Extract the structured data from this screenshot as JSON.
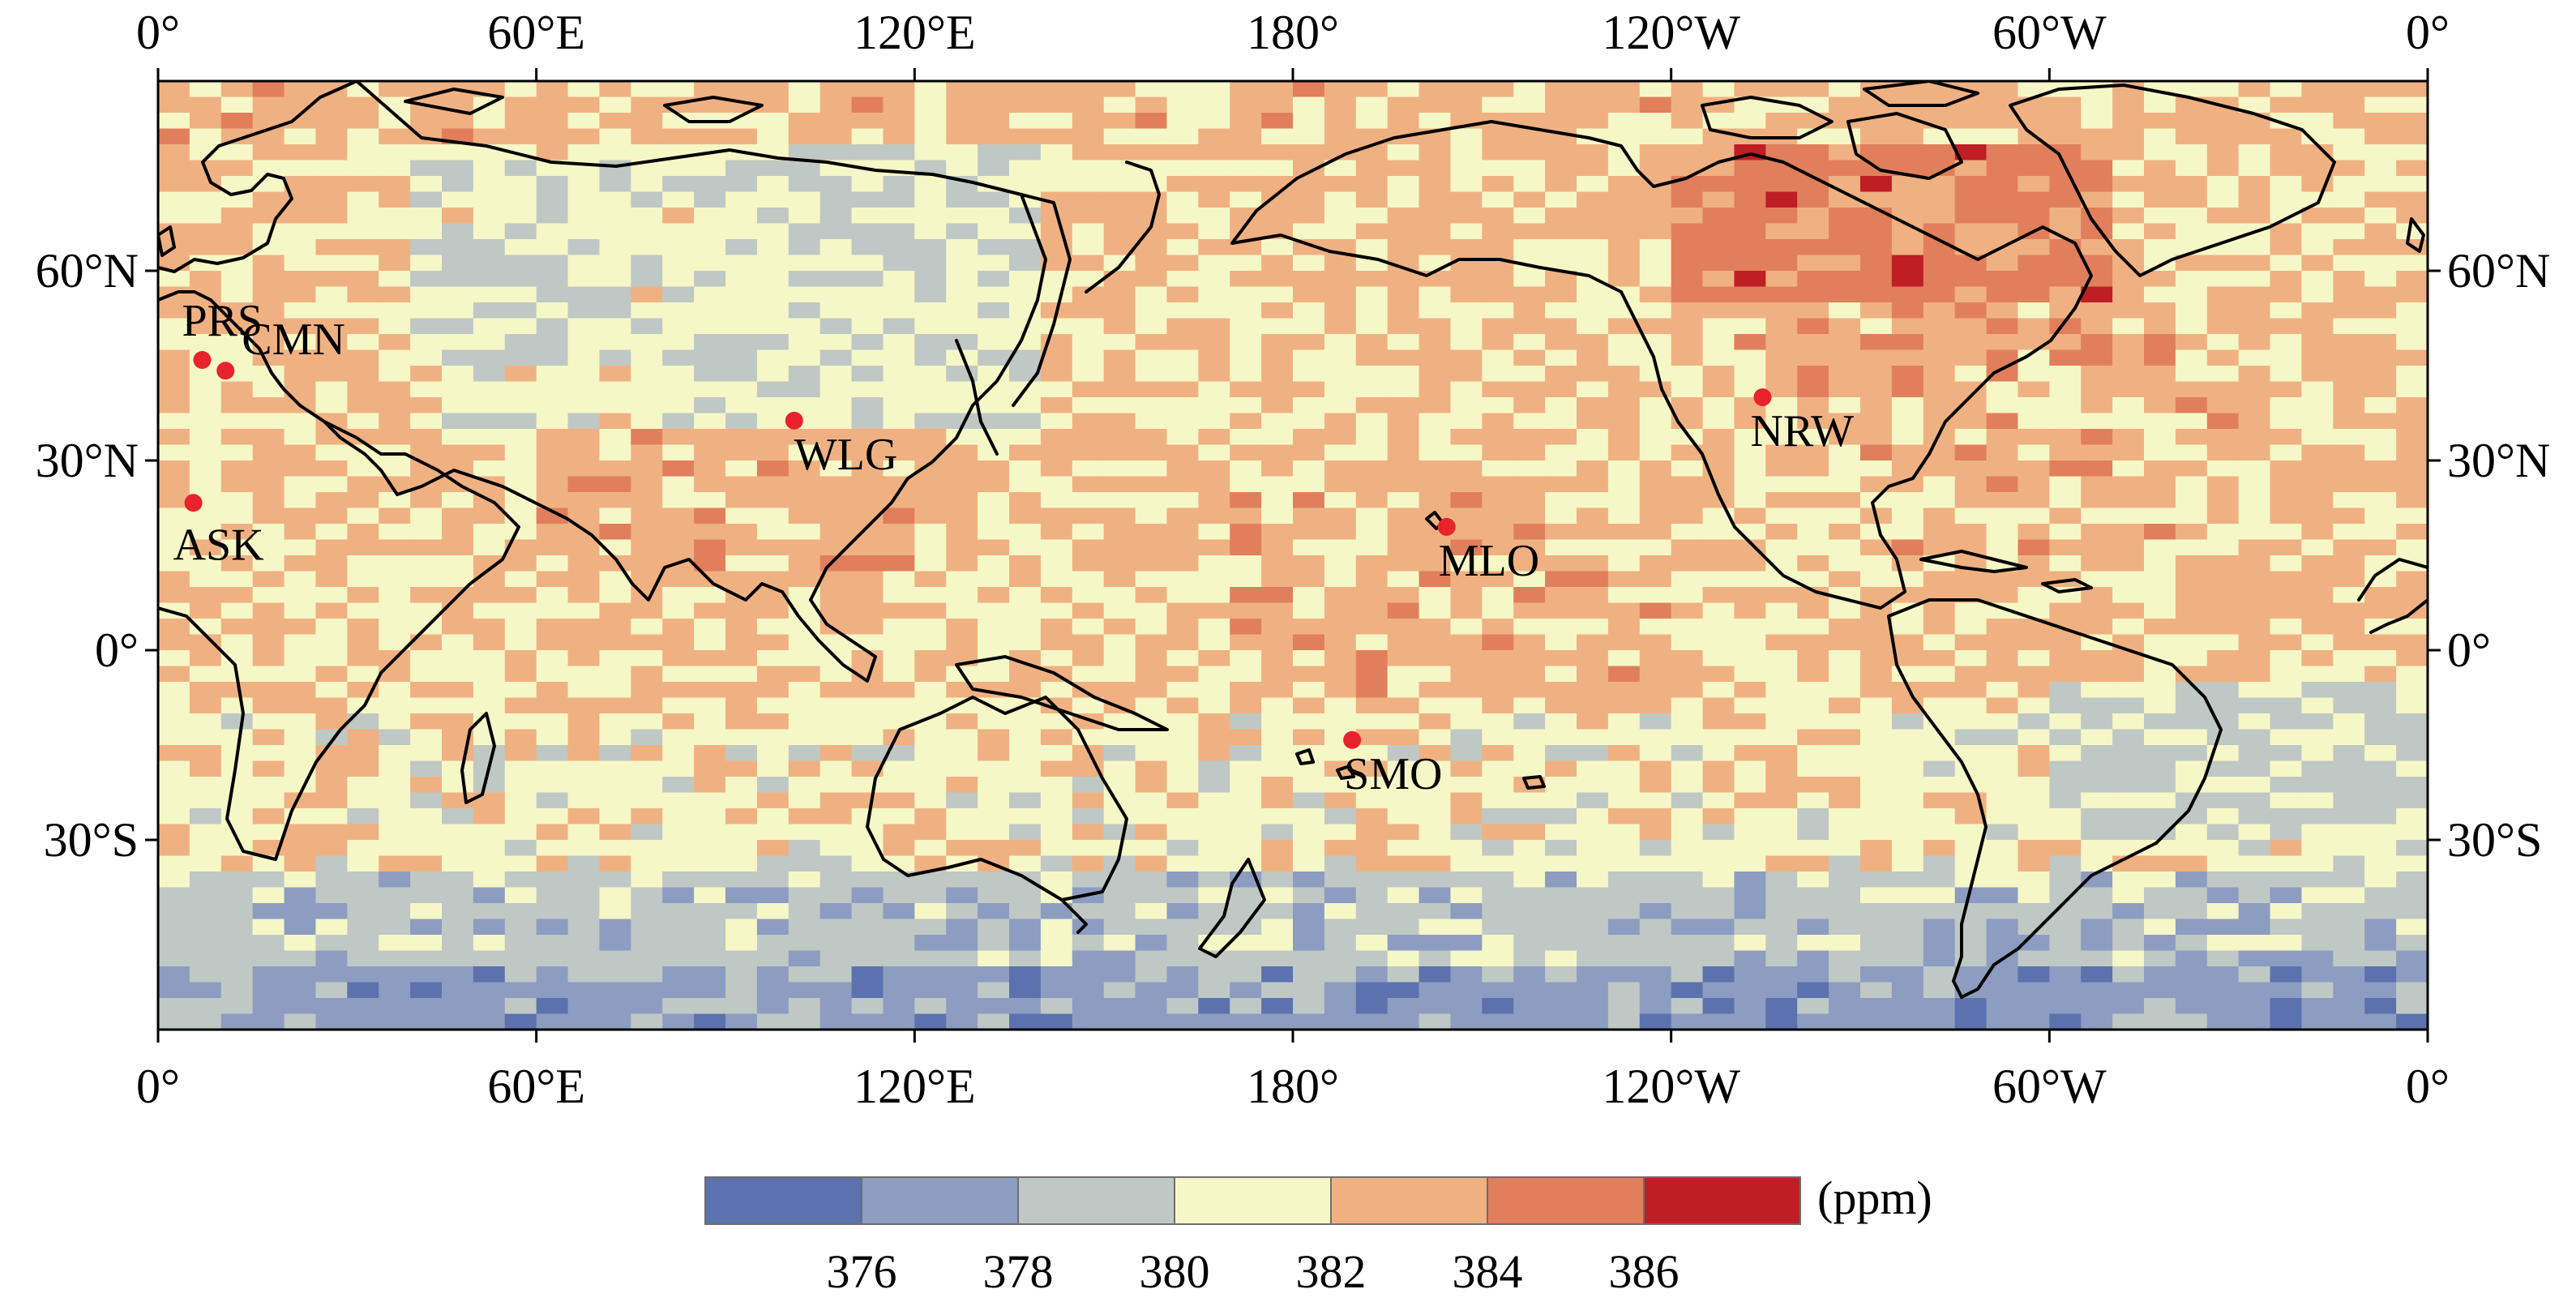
{
  "map": {
    "variable_unit": "(ppm)",
    "lon_ticks_top": [
      "0°",
      "60°E",
      "120°E",
      "180°",
      "120°W",
      "60°W",
      "0°"
    ],
    "lon_ticks_bottom": [
      "0°",
      "60°E",
      "120°E",
      "180°",
      "120°W",
      "60°W",
      "0°"
    ],
    "lon_tick_values": [
      0,
      60,
      120,
      180,
      240,
      300,
      360
    ],
    "lat_ticks_left": [
      "60°N",
      "30°N",
      "0°",
      "30°S"
    ],
    "lat_ticks_right": [
      "60°N",
      "30°N",
      "0°",
      "30°S"
    ],
    "lat_tick_values": [
      60,
      30,
      0,
      -30
    ],
    "lon_range": [
      0,
      360
    ],
    "lat_range": [
      -60,
      90
    ],
    "grid_cell_deg": [
      5,
      2.5
    ],
    "stations": [
      {
        "name": "PRS",
        "lon": 7.0,
        "lat": 45.9
      },
      {
        "name": "CMN",
        "lon": 10.7,
        "lat": 44.2
      },
      {
        "name": "ASK",
        "lon": 5.6,
        "lat": 23.3
      },
      {
        "name": "WLG",
        "lon": 100.9,
        "lat": 36.3
      },
      {
        "name": "MLO",
        "lon": 204.4,
        "lat": 19.5
      },
      {
        "name": "SMO",
        "lon": 189.4,
        "lat": -14.2
      },
      {
        "name": "NRW",
        "lon": 254.5,
        "lat": 40.0
      }
    ],
    "station_color": "#e8232b",
    "colorbar": {
      "tick_labels": [
        "376",
        "378",
        "380",
        "382",
        "384",
        "386"
      ],
      "colors": [
        "#5b72ae",
        "#8d9cc1",
        "#bfc8c4",
        "#f6f7c6",
        "#f0b182",
        "#e17f5c",
        "#bf1e24"
      ],
      "bounds": [
        374,
        376,
        378,
        380,
        382,
        384,
        386,
        388
      ]
    }
  }
}
